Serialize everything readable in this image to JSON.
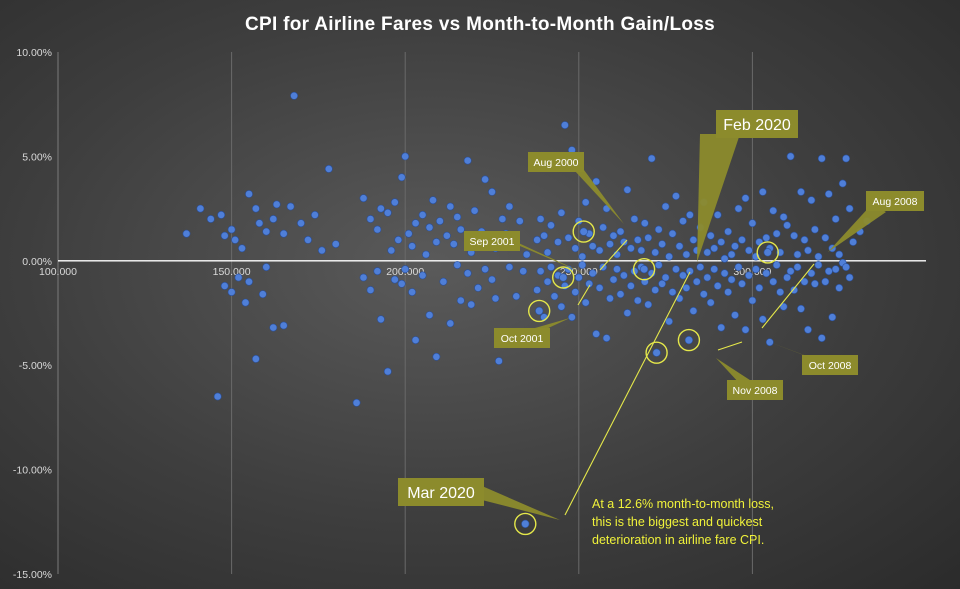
{
  "chart_data": {
    "type": "scatter",
    "title": "CPI for Airline Fares vs Month-to-Month  Gain/Loss",
    "xlim": [
      100,
      350
    ],
    "ylim": [
      -15,
      10
    ],
    "x_ticks": [
      {
        "value": 100,
        "label": "100.000"
      },
      {
        "value": 150,
        "label": "150.000"
      },
      {
        "value": 200,
        "label": "200.000"
      },
      {
        "value": 250,
        "label": "250.000"
      },
      {
        "value": 300,
        "label": "300.000"
      }
    ],
    "y_ticks": [
      {
        "value": 10,
        "label": "10.00%"
      },
      {
        "value": 5,
        "label": "5.00%"
      },
      {
        "value": 0,
        "label": "0.00%"
      },
      {
        "value": -5,
        "label": "-5.00%"
      },
      {
        "value": -10,
        "label": "-10.00%"
      },
      {
        "value": -15,
        "label": "-15.00%"
      }
    ],
    "points": [
      [
        137,
        1.3
      ],
      [
        141,
        2.5
      ],
      [
        144,
        2.0
      ],
      [
        147,
        2.2
      ],
      [
        148,
        1.2
      ],
      [
        150,
        1.5
      ],
      [
        151,
        1.0
      ],
      [
        153,
        0.6
      ],
      [
        155,
        3.2
      ],
      [
        157,
        2.5
      ],
      [
        158,
        1.8
      ],
      [
        160,
        1.4
      ],
      [
        162,
        2.0
      ],
      [
        163,
        2.7
      ],
      [
        165,
        1.3
      ],
      [
        167,
        2.6
      ],
      [
        168,
        7.9
      ],
      [
        170,
        1.8
      ],
      [
        172,
        1.0
      ],
      [
        174,
        2.2
      ],
      [
        176,
        0.5
      ],
      [
        178,
        4.4
      ],
      [
        180,
        0.8
      ],
      [
        148,
        -1.2
      ],
      [
        150,
        -1.5
      ],
      [
        152,
        -0.8
      ],
      [
        154,
        -2.0
      ],
      [
        155,
        -1.0
      ],
      [
        157,
        -4.7
      ],
      [
        159,
        -1.6
      ],
      [
        160,
        -0.3
      ],
      [
        162,
        -3.2
      ],
      [
        165,
        -3.1
      ],
      [
        146,
        -6.5
      ],
      [
        188,
        3.0
      ],
      [
        190,
        2.0
      ],
      [
        192,
        1.5
      ],
      [
        193,
        2.5
      ],
      [
        195,
        2.3
      ],
      [
        196,
        0.5
      ],
      [
        197,
        2.8
      ],
      [
        198,
        1.0
      ],
      [
        199,
        4.0
      ],
      [
        200,
        5.0
      ],
      [
        201,
        1.3
      ],
      [
        202,
        0.7
      ],
      [
        203,
        1.8
      ],
      [
        205,
        2.2
      ],
      [
        206,
        0.3
      ],
      [
        207,
        1.6
      ],
      [
        208,
        2.9
      ],
      [
        209,
        0.9
      ],
      [
        210,
        1.9
      ],
      [
        212,
        1.2
      ],
      [
        213,
        2.6
      ],
      [
        214,
        0.8
      ],
      [
        215,
        2.1
      ],
      [
        216,
        1.5
      ],
      [
        218,
        4.8
      ],
      [
        219,
        0.4
      ],
      [
        220,
        2.4
      ],
      [
        222,
        1.4
      ],
      [
        223,
        3.9
      ],
      [
        224,
        1.1
      ],
      [
        225,
        3.3
      ],
      [
        226,
        0.6
      ],
      [
        228,
        2.0
      ],
      [
        229,
        1.3
      ],
      [
        230,
        2.6
      ],
      [
        232,
        0.9
      ],
      [
        233,
        1.9
      ],
      [
        235,
        0.3
      ],
      [
        188,
        -0.8
      ],
      [
        190,
        -1.4
      ],
      [
        192,
        -0.5
      ],
      [
        193,
        -2.8
      ],
      [
        195,
        -5.3
      ],
      [
        197,
        -0.9
      ],
      [
        199,
        -1.1
      ],
      [
        200,
        -0.4
      ],
      [
        202,
        -1.5
      ],
      [
        203,
        -3.8
      ],
      [
        205,
        -0.7
      ],
      [
        207,
        -2.6
      ],
      [
        209,
        -4.6
      ],
      [
        211,
        -1.0
      ],
      [
        213,
        -3.0
      ],
      [
        215,
        -0.2
      ],
      [
        216,
        -1.9
      ],
      [
        218,
        -0.6
      ],
      [
        219,
        -2.1
      ],
      [
        221,
        -1.3
      ],
      [
        223,
        -0.4
      ],
      [
        225,
        -0.9
      ],
      [
        226,
        -1.8
      ],
      [
        227,
        -4.8
      ],
      [
        230,
        -0.3
      ],
      [
        232,
        -1.7
      ],
      [
        234,
        -0.5
      ],
      [
        186,
        -6.8
      ],
      [
        238,
        1.0
      ],
      [
        239,
        2.0
      ],
      [
        240,
        1.2
      ],
      [
        241,
        0.4
      ],
      [
        242,
        1.7
      ],
      [
        243,
        4.7
      ],
      [
        244,
        0.9
      ],
      [
        245,
        2.3
      ],
      [
        246,
        6.5
      ],
      [
        247,
        1.1
      ],
      [
        248,
        5.3
      ],
      [
        249,
        0.6
      ],
      [
        250,
        1.9
      ],
      [
        251,
        0.2
      ],
      [
        252,
        2.8
      ],
      [
        253,
        1.3
      ],
      [
        254,
        0.7
      ],
      [
        255,
        3.8
      ],
      [
        256,
        0.5
      ],
      [
        257,
        1.6
      ],
      [
        258,
        2.5
      ],
      [
        259,
        0.8
      ],
      [
        260,
        1.2
      ],
      [
        261,
        0.3
      ],
      [
        262,
        1.4
      ],
      [
        263,
        0.9
      ],
      [
        264,
        3.4
      ],
      [
        265,
        0.6
      ],
      [
        266,
        2.0
      ],
      [
        267,
        1.0
      ],
      [
        268,
        0.5
      ],
      [
        269,
        1.8
      ],
      [
        270,
        1.1
      ],
      [
        271,
        4.9
      ],
      [
        272,
        0.4
      ],
      [
        273,
        1.5
      ],
      [
        274,
        0.8
      ],
      [
        275,
        2.6
      ],
      [
        276,
        0.2
      ],
      [
        277,
        1.3
      ],
      [
        278,
        3.1
      ],
      [
        279,
        0.7
      ],
      [
        280,
        1.9
      ],
      [
        281,
        0.3
      ],
      [
        282,
        2.2
      ],
      [
        283,
        1.0
      ],
      [
        284,
        0.5
      ],
      [
        285,
        1.6
      ],
      [
        286,
        2.8
      ],
      [
        287,
        0.4
      ],
      [
        288,
        1.2
      ],
      [
        289,
        0.6
      ],
      [
        290,
        2.2
      ],
      [
        291,
        0.9
      ],
      [
        292,
        0.1
      ],
      [
        293,
        1.4
      ],
      [
        294,
        0.3
      ],
      [
        295,
        0.7
      ],
      [
        296,
        2.5
      ],
      [
        297,
        1.0
      ],
      [
        298,
        3.0
      ],
      [
        299,
        0.5
      ],
      [
        300,
        1.8
      ],
      [
        301,
        0.2
      ],
      [
        302,
        0.9
      ],
      [
        303,
        3.3
      ],
      [
        304,
        1.1
      ],
      [
        305,
        0.6
      ],
      [
        306,
        2.4
      ],
      [
        307,
        1.3
      ],
      [
        308,
        0.4
      ],
      [
        309,
        2.1
      ],
      [
        310,
        1.7
      ],
      [
        238,
        -1.4
      ],
      [
        239,
        -0.5
      ],
      [
        240,
        -2.7
      ],
      [
        241,
        -1.0
      ],
      [
        242,
        -0.3
      ],
      [
        243,
        -1.7
      ],
      [
        244,
        -0.7
      ],
      [
        245,
        -2.2
      ],
      [
        246,
        -1.2
      ],
      [
        247,
        -0.4
      ],
      [
        248,
        -2.7
      ],
      [
        249,
        -1.5
      ],
      [
        250,
        -0.8
      ],
      [
        251,
        -0.2
      ],
      [
        252,
        -2.0
      ],
      [
        253,
        -1.1
      ],
      [
        254,
        -0.6
      ],
      [
        255,
        -3.5
      ],
      [
        256,
        -1.3
      ],
      [
        257,
        -0.3
      ],
      [
        258,
        -3.7
      ],
      [
        259,
        -1.8
      ],
      [
        260,
        -0.9
      ],
      [
        261,
        -0.4
      ],
      [
        262,
        -1.6
      ],
      [
        263,
        -0.7
      ],
      [
        264,
        -2.5
      ],
      [
        265,
        -1.2
      ],
      [
        266,
        -0.5
      ],
      [
        267,
        -1.9
      ],
      [
        268,
        -0.3
      ],
      [
        269,
        -1.0
      ],
      [
        270,
        -2.1
      ],
      [
        271,
        -0.6
      ],
      [
        272,
        -1.4
      ],
      [
        273,
        -0.2
      ],
      [
        274,
        -1.1
      ],
      [
        275,
        -0.8
      ],
      [
        276,
        -2.9
      ],
      [
        277,
        -1.5
      ],
      [
        278,
        -0.4
      ],
      [
        279,
        -1.8
      ],
      [
        280,
        -0.7
      ],
      [
        281,
        -1.3
      ],
      [
        282,
        -0.5
      ],
      [
        283,
        -2.4
      ],
      [
        284,
        -1.0
      ],
      [
        285,
        -0.3
      ],
      [
        286,
        -1.6
      ],
      [
        287,
        -0.8
      ],
      [
        288,
        -2.0
      ],
      [
        289,
        -0.4
      ],
      [
        290,
        -1.2
      ],
      [
        291,
        -3.2
      ],
      [
        292,
        -0.6
      ],
      [
        293,
        -1.5
      ],
      [
        294,
        -0.9
      ],
      [
        295,
        -2.6
      ],
      [
        296,
        -0.3
      ],
      [
        297,
        -1.1
      ],
      [
        298,
        -3.3
      ],
      [
        299,
        -0.7
      ],
      [
        300,
        -1.9
      ],
      [
        301,
        -0.4
      ],
      [
        302,
        -1.3
      ],
      [
        303,
        -2.8
      ],
      [
        304,
        -0.6
      ],
      [
        305,
        -3.9
      ],
      [
        306,
        -1.0
      ],
      [
        307,
        -0.2
      ],
      [
        308,
        -1.5
      ],
      [
        309,
        -2.2
      ],
      [
        310,
        -0.8
      ],
      [
        311,
        5.0
      ],
      [
        312,
        1.2
      ],
      [
        313,
        0.3
      ],
      [
        314,
        3.3
      ],
      [
        315,
        1.0
      ],
      [
        316,
        0.5
      ],
      [
        317,
        2.9
      ],
      [
        318,
        1.5
      ],
      [
        319,
        0.2
      ],
      [
        320,
        4.9
      ],
      [
        321,
        1.1
      ],
      [
        322,
        3.2
      ],
      [
        323,
        0.6
      ],
      [
        324,
        2.0
      ],
      [
        325,
        0.3
      ],
      [
        326,
        3.7
      ],
      [
        327,
        4.9
      ],
      [
        328,
        2.5
      ],
      [
        329,
        0.9
      ],
      [
        331,
        1.4
      ],
      [
        333,
        1.9
      ],
      [
        311,
        -0.5
      ],
      [
        312,
        -1.4
      ],
      [
        313,
        -0.3
      ],
      [
        314,
        -2.3
      ],
      [
        315,
        -1.0
      ],
      [
        316,
        -3.3
      ],
      [
        317,
        -0.6
      ],
      [
        318,
        -1.1
      ],
      [
        319,
        -0.2
      ],
      [
        320,
        -3.7
      ],
      [
        321,
        -1.0
      ],
      [
        322,
        -0.5
      ],
      [
        323,
        -2.7
      ],
      [
        324,
        -0.4
      ],
      [
        325,
        -1.3
      ],
      [
        326,
        -0.1
      ],
      [
        327,
        -0.3
      ],
      [
        328,
        -0.8
      ]
    ],
    "highlighted": [
      {
        "name": "Aug 2000",
        "x": 251.4,
        "y": 1.4
      },
      {
        "name": "Sep 2001",
        "x": 245.5,
        "y": -0.8
      },
      {
        "name": "Oct 2001",
        "x": 238.6,
        "y": -2.4
      },
      {
        "name": "Feb 2020",
        "x": 268.8,
        "y": -0.4
      },
      {
        "name": "Mar 2020",
        "x": 234.6,
        "y": -12.6
      },
      {
        "name": "Aug 2008",
        "x": 304.4,
        "y": 0.4
      },
      {
        "name": "Oct 2008",
        "x": 281.7,
        "y": -3.8
      },
      {
        "name": "Nov 2008",
        "x": 272.4,
        "y": -4.4
      }
    ]
  },
  "annotations": {
    "aug2000": "Aug 2000",
    "sep2001": "Sep 2001",
    "oct2001": "Oct 2001",
    "feb2020": "Feb 2020",
    "mar2020": "Mar 2020",
    "aug2008": "Aug 2008",
    "oct2008": "Oct 2008",
    "nov2008": "Nov 2008",
    "note_line1": "At a 12.6% month-to-month  loss,",
    "note_line2": "this is the biggest and quickest",
    "note_line3": "deterioration  in airline fare CPI."
  },
  "colors": {
    "point": "#4f7fd8",
    "callout": "#8c8b2c",
    "highlight_ring": "#e5e84a",
    "note_text": "#f0f23a"
  }
}
